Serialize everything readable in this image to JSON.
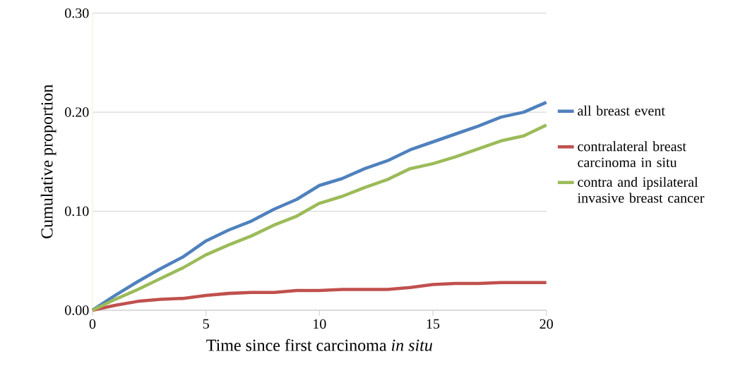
{
  "chart_data": {
    "type": "line",
    "xlabel": "Time since first carcinoma *in situ*",
    "ylabel": "Cumulative proportion",
    "x": [
      0,
      1,
      2,
      3,
      4,
      5,
      6,
      7,
      8,
      9,
      10,
      11,
      12,
      13,
      14,
      15,
      16,
      17,
      18,
      19,
      20
    ],
    "series": [
      {
        "name": "all breast event",
        "color": "#4f81bd",
        "values": [
          0,
          0.015,
          0.029,
          0.042,
          0.054,
          0.07,
          0.081,
          0.09,
          0.102,
          0.112,
          0.126,
          0.133,
          0.143,
          0.151,
          0.162,
          0.17,
          0.178,
          0.186,
          0.195,
          0.2,
          0.21
        ]
      },
      {
        "name": "contralateral breast carcinoma in situ",
        "color": "#c0504d",
        "values": [
          0,
          0.005,
          0.009,
          0.011,
          0.012,
          0.015,
          0.017,
          0.018,
          0.018,
          0.02,
          0.02,
          0.021,
          0.021,
          0.021,
          0.023,
          0.026,
          0.027,
          0.027,
          0.028,
          0.028,
          0.028
        ]
      },
      {
        "name": "contra and ipsilateral invasive breast cancer",
        "color": "#9bbb59",
        "values": [
          0,
          0.011,
          0.021,
          0.032,
          0.043,
          0.056,
          0.066,
          0.075,
          0.086,
          0.095,
          0.108,
          0.115,
          0.124,
          0.132,
          0.143,
          0.148,
          0.155,
          0.163,
          0.171,
          0.176,
          0.187
        ]
      }
    ],
    "xlim": [
      0,
      20
    ],
    "xticks": [
      0,
      5,
      10,
      15,
      20
    ],
    "ylim": [
      0,
      0.3
    ],
    "yticks": [
      {
        "value": 0,
        "label": "0.00"
      },
      {
        "value": 0.1,
        "label": "0.10"
      },
      {
        "value": 0.2,
        "label": "0.20"
      },
      {
        "value": 0.3,
        "label": "0.30"
      }
    ],
    "grid": "y",
    "legend": "right",
    "marker": "none",
    "line_style": "solid"
  }
}
